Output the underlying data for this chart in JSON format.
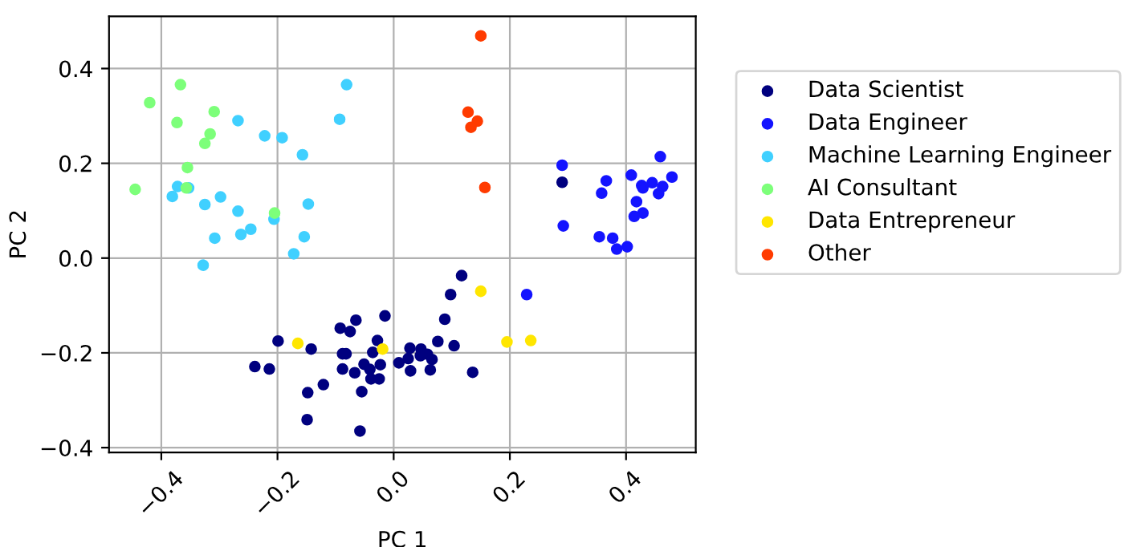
{
  "chart_data": {
    "type": "scatter",
    "xlabel": "PC 1",
    "ylabel": "PC 2",
    "xlim": [
      -0.49,
      0.52
    ],
    "ylim": [
      -0.41,
      0.51
    ],
    "xticks": [
      {
        "value": -0.4,
        "label": "−0.4"
      },
      {
        "value": -0.2,
        "label": "−0.2"
      },
      {
        "value": 0,
        "label": "0.0"
      },
      0.2,
      0.4
    ],
    "yticks": [
      {
        "value": -0.4,
        "label": "−0.4"
      },
      {
        "value": -0.2,
        "label": "−0.2"
      },
      {
        "value": 0,
        "label": "0.0"
      },
      0.2,
      0.4
    ],
    "grid": true,
    "legend": "right",
    "marker": "circle",
    "series": [
      {
        "name": "Data Scientist",
        "color": "#00007f",
        "x": [
          0.29,
          0.117,
          0.098,
          0.088,
          0.076,
          0.104,
          0.136,
          -0.015,
          -0.065,
          -0.092,
          -0.075,
          -0.199,
          -0.028,
          -0.142,
          0.028,
          0.047,
          -0.036,
          -0.088,
          -0.082,
          0.046,
          0.058,
          0.066,
          0.025,
          0.009,
          -0.051,
          -0.023,
          -0.239,
          -0.214,
          -0.088,
          -0.041,
          -0.067,
          0.029,
          0.063,
          -0.039,
          -0.025,
          -0.121,
          -0.148,
          -0.055,
          -0.149,
          -0.058
        ],
        "values": [
          0.16,
          -0.037,
          -0.077,
          -0.129,
          -0.176,
          -0.185,
          -0.241,
          -0.122,
          -0.131,
          -0.148,
          -0.155,
          -0.175,
          -0.174,
          -0.192,
          -0.19,
          -0.192,
          -0.199,
          -0.202,
          -0.202,
          -0.206,
          -0.203,
          -0.214,
          -0.212,
          -0.221,
          -0.224,
          -0.225,
          -0.229,
          -0.234,
          -0.234,
          -0.235,
          -0.242,
          -0.238,
          -0.236,
          -0.255,
          -0.255,
          -0.267,
          -0.284,
          -0.282,
          -0.341,
          -0.365
        ]
      },
      {
        "name": "Data Engineer",
        "color": "#1414ff",
        "x": [
          0.29,
          0.459,
          0.479,
          0.409,
          0.445,
          0.427,
          0.429,
          0.463,
          0.456,
          0.366,
          0.358,
          0.418,
          0.429,
          0.414,
          0.292,
          0.354,
          0.377,
          0.402,
          0.384,
          0.229
        ],
        "values": [
          0.196,
          0.214,
          0.171,
          0.175,
          0.159,
          0.153,
          0.148,
          0.151,
          0.136,
          0.163,
          0.137,
          0.119,
          0.095,
          0.088,
          0.068,
          0.045,
          0.042,
          0.024,
          0.019,
          -0.077
        ]
      },
      {
        "name": "Machine Learning Engineer",
        "color": "#40d0ff",
        "x": [
          -0.081,
          -0.268,
          -0.093,
          -0.222,
          -0.192,
          -0.157,
          -0.372,
          -0.353,
          -0.381,
          -0.298,
          -0.325,
          -0.147,
          -0.268,
          -0.206,
          -0.246,
          -0.263,
          -0.154,
          -0.308,
          -0.172,
          -0.328
        ],
        "values": [
          0.366,
          0.29,
          0.293,
          0.258,
          0.254,
          0.218,
          0.151,
          0.148,
          0.13,
          0.129,
          0.113,
          0.114,
          0.099,
          0.082,
          0.061,
          0.05,
          0.045,
          0.042,
          0.009,
          -0.015
        ]
      },
      {
        "name": "AI Consultant",
        "color": "#7dff7a",
        "x": [
          -0.367,
          -0.42,
          -0.309,
          -0.373,
          -0.316,
          -0.325,
          -0.355,
          -0.445,
          -0.357,
          -0.205
        ],
        "values": [
          0.366,
          0.328,
          0.309,
          0.286,
          0.262,
          0.242,
          0.191,
          0.145,
          0.148,
          0.095
        ]
      },
      {
        "name": "Data Entrepreneur",
        "color": "#ffe600",
        "x": [
          0.15,
          0.195,
          0.236,
          -0.165,
          -0.019
        ],
        "values": [
          -0.07,
          -0.177,
          -0.174,
          -0.18,
          -0.192
        ]
      },
      {
        "name": "Other",
        "color": "#ff3b00",
        "x": [
          0.15,
          0.128,
          0.144,
          0.133,
          0.157
        ],
        "values": [
          0.469,
          0.308,
          0.289,
          0.276,
          0.149
        ]
      }
    ]
  }
}
